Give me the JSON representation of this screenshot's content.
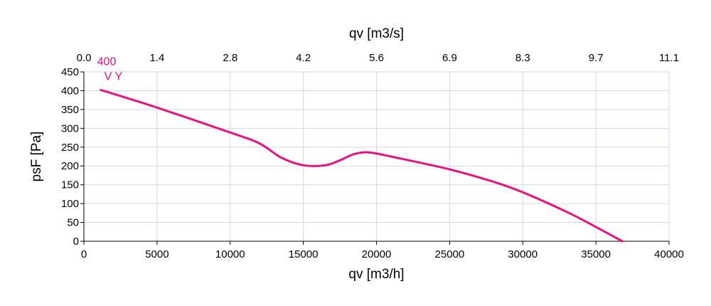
{
  "chart_data": {
    "type": "line",
    "xlabel": "qv [m3/h]",
    "ylabel": "psF [Pa]",
    "x2label": "qv [m3/s]",
    "xlim": [
      0,
      40000
    ],
    "ylim": [
      0,
      450
    ],
    "x_ticks": [
      "0",
      "5000",
      "10000",
      "15000",
      "20000",
      "25000",
      "30000",
      "35000",
      "40000"
    ],
    "y_ticks": [
      "0",
      "50",
      "100",
      "150",
      "200",
      "250",
      "300",
      "350",
      "400",
      "450"
    ],
    "x2_ticks": [
      "0.0",
      "1.4",
      "2.8",
      "4.2",
      "5.6",
      "6.9",
      "8.3",
      "9.7",
      "11.1"
    ],
    "grid": true,
    "series": [
      {
        "name": "V Y",
        "color": "#e6137f",
        "annotation_value": "400",
        "x": [
          1150,
          5000,
          10000,
          12000,
          13500,
          15000,
          16500,
          17500,
          18500,
          19500,
          21000,
          25000,
          28000,
          30000,
          33000,
          35000,
          36800
        ],
        "y": [
          402,
          355,
          289,
          260,
          222,
          202,
          202,
          215,
          232,
          236,
          225,
          191,
          158,
          130,
          78,
          38,
          0
        ]
      }
    ]
  }
}
